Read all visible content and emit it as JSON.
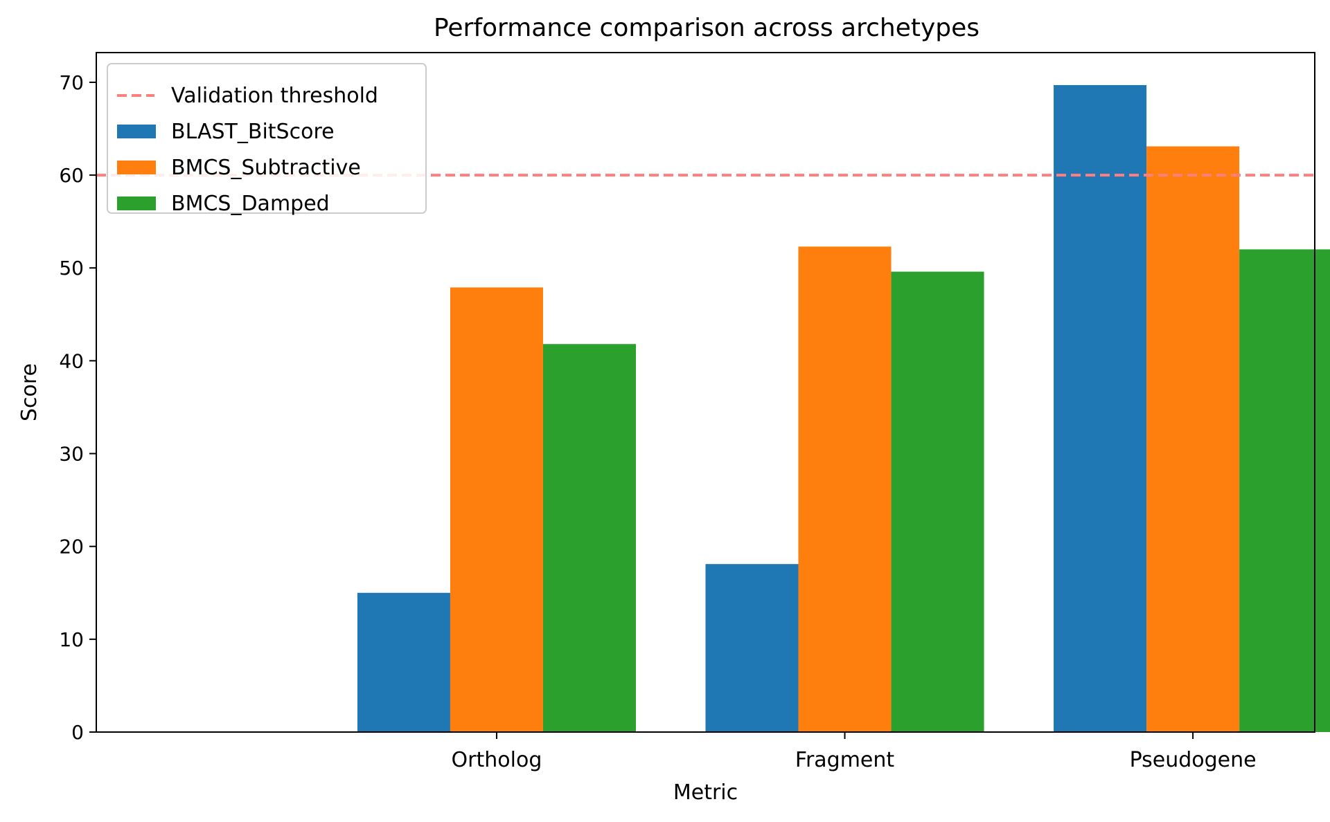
{
  "chart_data": {
    "type": "bar",
    "title": "Performance comparison across archetypes",
    "xlabel": "Metric",
    "ylabel": "Score",
    "categories": [
      "Ortholog",
      "Fragment",
      "Pseudogene"
    ],
    "series": [
      {
        "name": "BLAST_BitScore",
        "color": "#1f77b4",
        "values": [
          15.0,
          18.1,
          69.7
        ]
      },
      {
        "name": "BMCS_Subtractive",
        "color": "#ff7f0e",
        "values": [
          47.9,
          52.3,
          63.1
        ]
      },
      {
        "name": "BMCS_Damped",
        "color": "#2ca02c",
        "values": [
          41.8,
          49.6,
          52.0
        ]
      }
    ],
    "threshold": {
      "label": "Validation threshold",
      "value": 60,
      "color": "#ff7f7f",
      "style": "dashed"
    },
    "ylim": [
      0,
      73.2
    ],
    "yticks": [
      0,
      10,
      20,
      30,
      40,
      50,
      60,
      70
    ],
    "grid": false,
    "legend_position": "top-left"
  }
}
